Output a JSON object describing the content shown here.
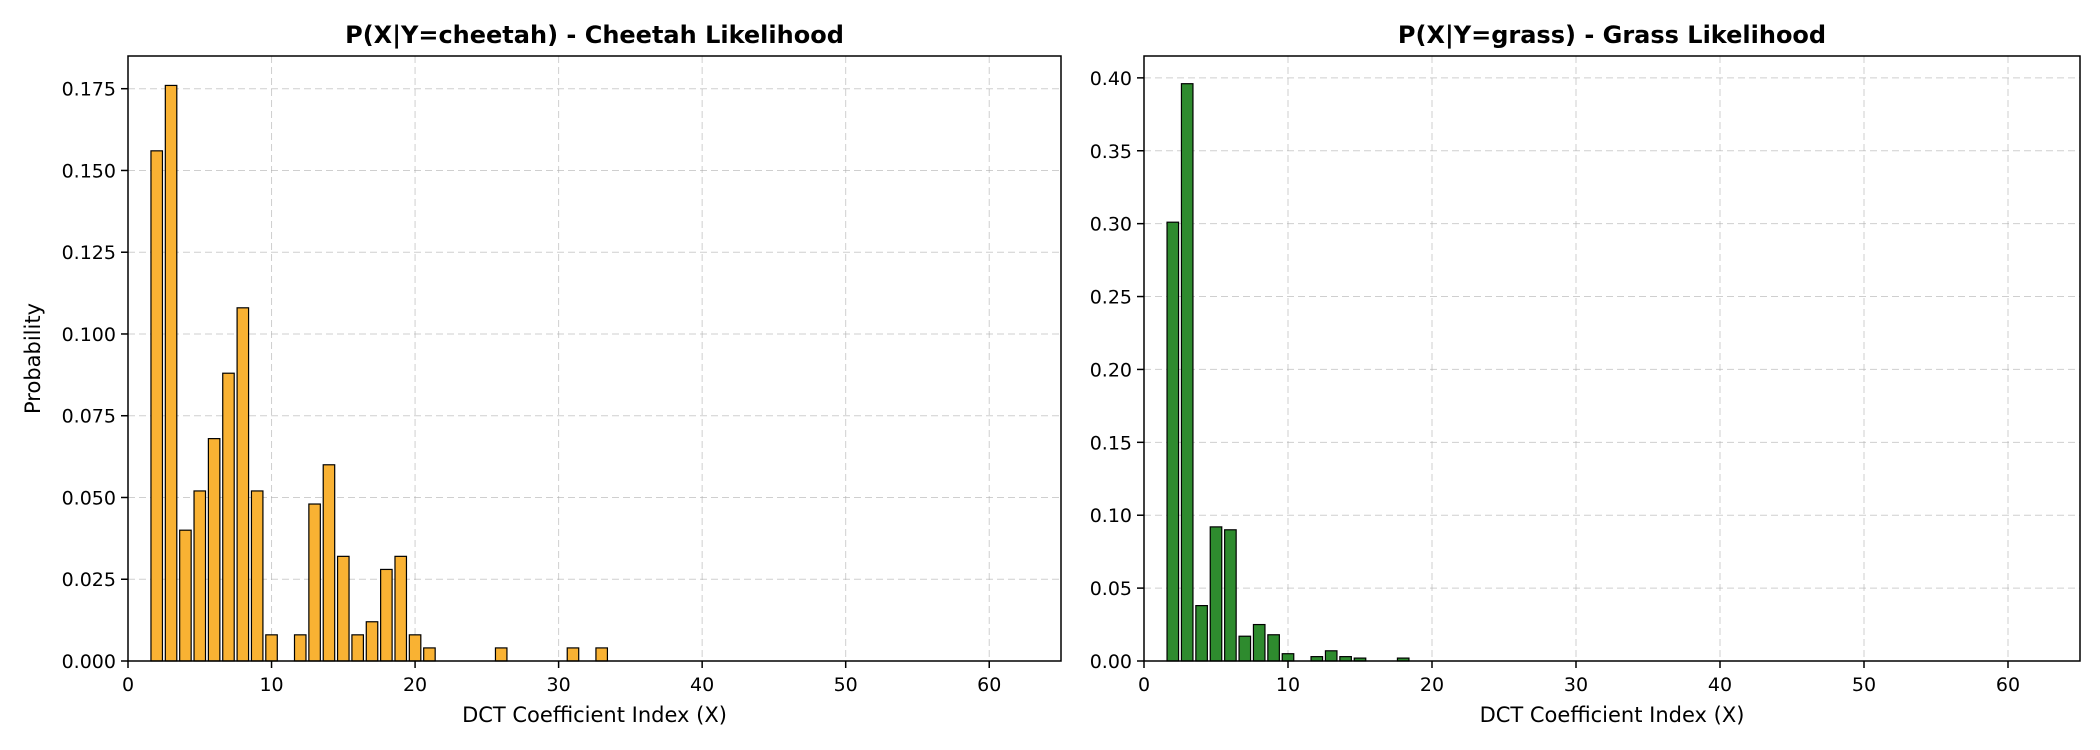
{
  "chart_data": [
    {
      "type": "bar",
      "title": "P(X|Y=cheetah) - Cheetah Likelihood",
      "xlabel": "DCT Coefficient Index (X)",
      "ylabel": "Probability",
      "xlim": [
        0,
        65
      ],
      "ylim": [
        0,
        0.185
      ],
      "xticks": [
        0,
        10,
        20,
        30,
        40,
        50,
        60
      ],
      "yticks": [
        0.0,
        0.025,
        0.05,
        0.075,
        0.1,
        0.125,
        0.15,
        0.175
      ],
      "ytick_labels": [
        "0.000",
        "0.025",
        "0.050",
        "0.075",
        "0.100",
        "0.125",
        "0.150",
        "0.175"
      ],
      "bar_color": "#F9B233",
      "edge_color": "#000000",
      "grid": true,
      "x": [
        2,
        3,
        4,
        5,
        6,
        7,
        8,
        9,
        10,
        12,
        13,
        14,
        15,
        16,
        17,
        18,
        19,
        20,
        21,
        26,
        31,
        33
      ],
      "values": [
        0.156,
        0.176,
        0.04,
        0.052,
        0.068,
        0.088,
        0.108,
        0.052,
        0.008,
        0.008,
        0.048,
        0.06,
        0.032,
        0.008,
        0.012,
        0.028,
        0.032,
        0.008,
        0.004,
        0.004,
        0.004,
        0.004
      ]
    },
    {
      "type": "bar",
      "title": "P(X|Y=grass) - Grass Likelihood",
      "xlabel": "DCT Coefficient Index (X)",
      "ylabel": "",
      "xlim": [
        0,
        65
      ],
      "ylim": [
        0,
        0.415
      ],
      "xticks": [
        0,
        10,
        20,
        30,
        40,
        50,
        60
      ],
      "yticks": [
        0.0,
        0.05,
        0.1,
        0.15,
        0.2,
        0.25,
        0.3,
        0.35,
        0.4
      ],
      "ytick_labels": [
        "0.00",
        "0.05",
        "0.10",
        "0.15",
        "0.20",
        "0.25",
        "0.30",
        "0.35",
        "0.40"
      ],
      "bar_color": "#2E8B2E",
      "edge_color": "#000000",
      "grid": true,
      "x": [
        2,
        3,
        4,
        5,
        6,
        7,
        8,
        9,
        10,
        12,
        13,
        14,
        15,
        18
      ],
      "values": [
        0.301,
        0.396,
        0.038,
        0.092,
        0.09,
        0.017,
        0.025,
        0.018,
        0.005,
        0.003,
        0.007,
        0.003,
        0.002,
        0.002
      ]
    }
  ]
}
